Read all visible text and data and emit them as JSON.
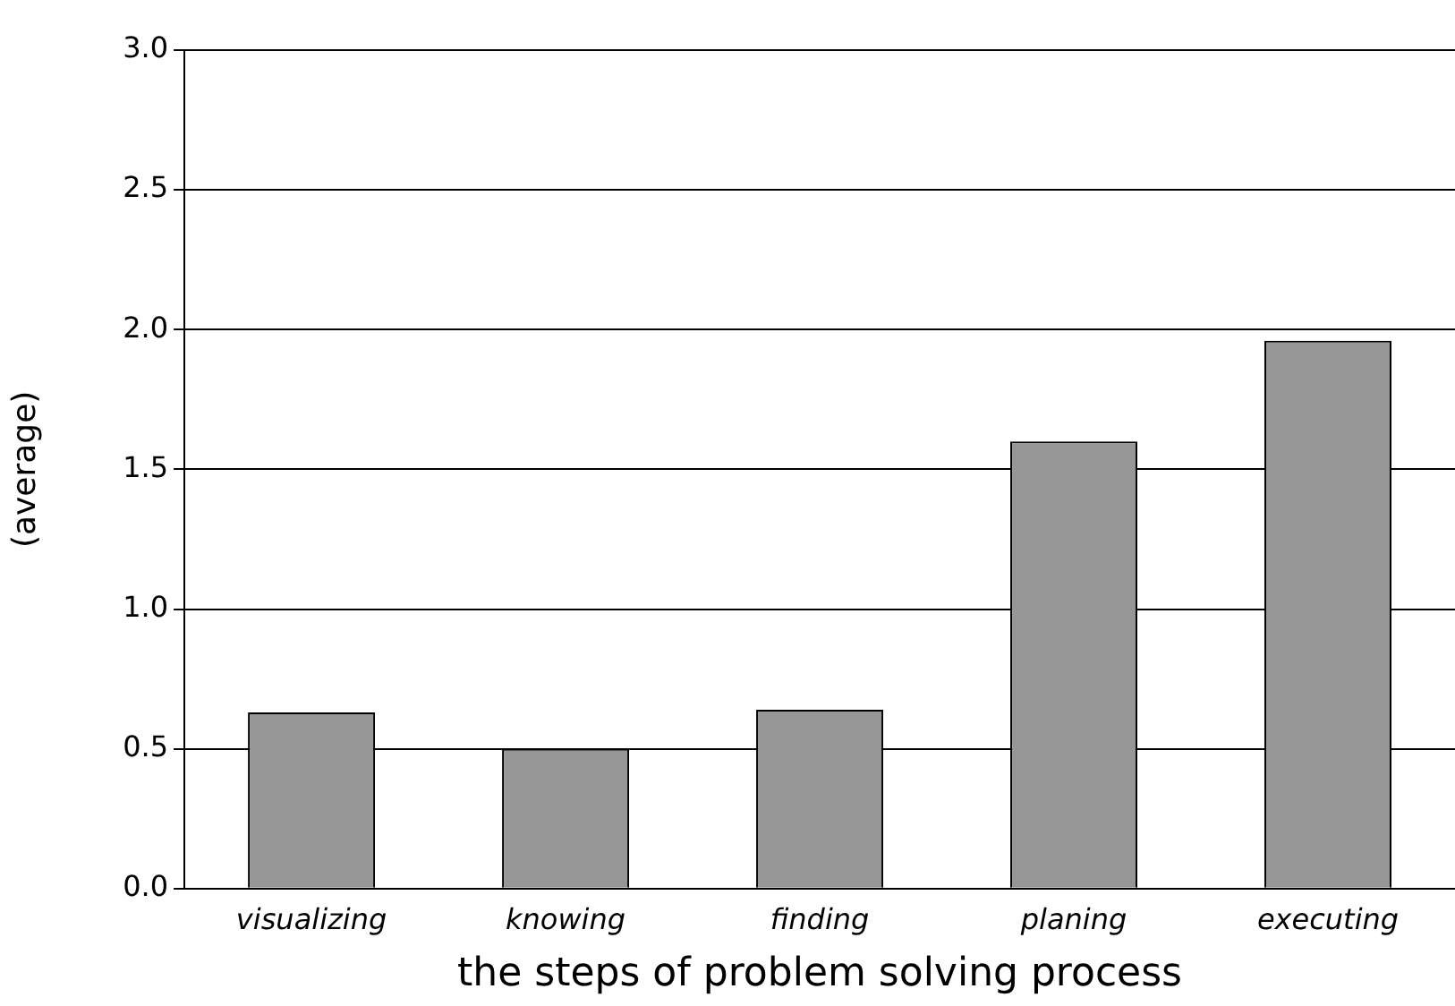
{
  "chart_data": {
    "type": "bar",
    "xlabel": "the steps of problem solving process",
    "ylabel": "(average)",
    "categories": [
      "visualizing",
      "knowing",
      "finding",
      "planing",
      "executing"
    ],
    "values": [
      0.63,
      0.5,
      0.64,
      1.6,
      1.96
    ],
    "color": "#969696",
    "ylim": [
      0,
      3
    ],
    "yticks": [
      {
        "value": 0,
        "label": "0.0"
      },
      {
        "value": 0.5,
        "label": "0.5"
      },
      {
        "value": 1,
        "label": "1.0"
      },
      {
        "value": 1.5,
        "label": "1.5"
      },
      {
        "value": 2,
        "label": "2.0"
      },
      {
        "value": 2.5,
        "label": "2.5"
      },
      {
        "value": 3,
        "label": "3.0"
      }
    ],
    "grid": "y",
    "legend": false
  }
}
